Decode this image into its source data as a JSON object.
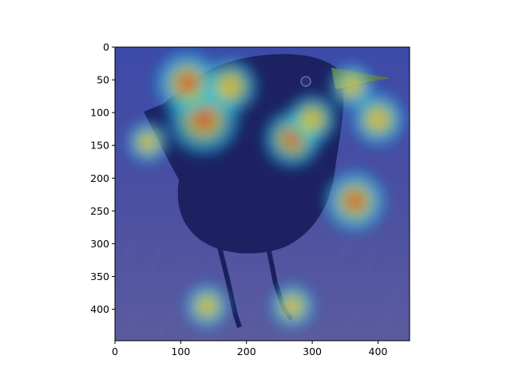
{
  "image": {
    "subject": "bird-photo-with-heatmap-overlay",
    "colormap": "jet",
    "heatmap_hotspots": [
      {
        "x": 135,
        "y": 110,
        "level": 1.0
      },
      {
        "x": 110,
        "y": 55,
        "level": 0.85
      },
      {
        "x": 175,
        "y": 60,
        "level": 0.7
      },
      {
        "x": 270,
        "y": 140,
        "level": 0.75
      },
      {
        "x": 300,
        "y": 110,
        "level": 0.6
      },
      {
        "x": 365,
        "y": 235,
        "level": 0.8
      },
      {
        "x": 400,
        "y": 110,
        "level": 0.65
      },
      {
        "x": 50,
        "y": 145,
        "level": 0.45
      },
      {
        "x": 140,
        "y": 395,
        "level": 0.5
      },
      {
        "x": 270,
        "y": 395,
        "level": 0.5
      },
      {
        "x": 360,
        "y": 60,
        "level": 0.5
      }
    ]
  },
  "axes": {
    "xlim": [
      0,
      448
    ],
    "ylim": [
      448,
      0
    ],
    "x_ticks": [
      0,
      100,
      200,
      300,
      400
    ],
    "y_ticks": [
      0,
      50,
      100,
      150,
      200,
      250,
      300,
      350,
      400
    ]
  },
  "colors": {
    "axis": "#000000",
    "overlay_base": "#3a3f9e",
    "ground": "#5a5aa0",
    "bird_body": "#1a1f5e"
  }
}
